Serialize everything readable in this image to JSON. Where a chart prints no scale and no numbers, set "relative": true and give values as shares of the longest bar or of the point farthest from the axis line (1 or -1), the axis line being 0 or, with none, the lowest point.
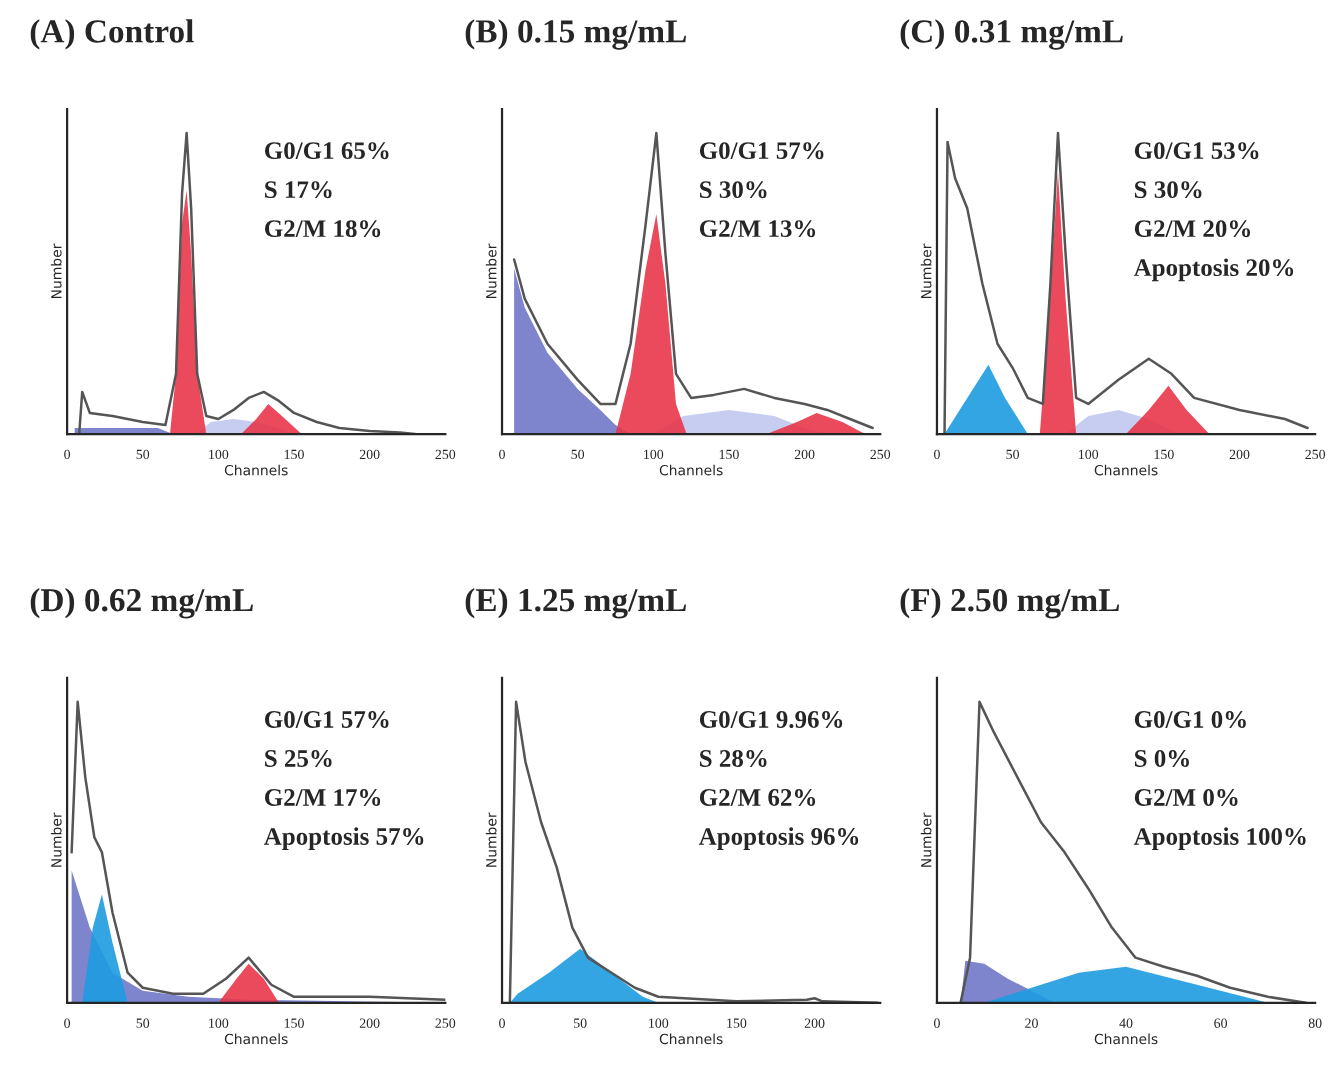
{
  "chart_data": [
    {
      "type": "area",
      "title": "(A) Control",
      "xlabel": "Channels",
      "ylabel": "Number",
      "relative": true,
      "tick_labels": "x",
      "xlim": [
        0,
        250
      ],
      "xticks": [
        0,
        50,
        100,
        150,
        200,
        250
      ],
      "grid": false,
      "legend": false,
      "annotations": [
        "G0/G1 65%",
        "S 17%",
        "G2/M 18%"
      ],
      "series": [
        {
          "color": "#7078c8",
          "x": [
            5,
            60,
            70
          ],
          "values": [
            0.02,
            0.02,
            0
          ]
        },
        {
          "type": "area",
          "color": "#c0c8ee",
          "x": [
            85,
            95,
            110,
            125,
            140,
            150
          ],
          "values": [
            0,
            0.04,
            0.05,
            0.04,
            0.02,
            0
          ]
        },
        {
          "type": "area",
          "color": "#e8364a",
          "x": [
            68,
            72,
            76,
            79,
            82,
            86,
            92
          ],
          "values": [
            0,
            0.2,
            0.7,
            0.81,
            0.6,
            0.2,
            0
          ]
        },
        {
          "type": "area",
          "color": "#e8364a",
          "x": [
            115,
            125,
            133,
            142,
            155
          ],
          "values": [
            0,
            0.05,
            0.1,
            0.06,
            0
          ]
        },
        {
          "type": "line",
          "color": "#555555",
          "x": [
            8,
            10,
            15,
            30,
            50,
            65,
            72,
            76,
            79,
            82,
            86,
            92,
            100,
            110,
            120,
            130,
            140,
            150,
            165,
            180,
            200,
            220,
            230
          ],
          "values": [
            0,
            0.14,
            0.07,
            0.06,
            0.04,
            0.03,
            0.2,
            0.8,
            1.0,
            0.75,
            0.2,
            0.06,
            0.05,
            0.08,
            0.12,
            0.14,
            0.11,
            0.07,
            0.04,
            0.02,
            0.01,
            0.005,
            0
          ]
        }
      ]
    },
    {
      "type": "area",
      "title": "(B) 0.15 mg/mL",
      "xlabel": "Channels",
      "ylabel": "Number",
      "relative": true,
      "tick_labels": "x",
      "xlim": [
        0,
        250
      ],
      "xticks": [
        0,
        50,
        100,
        150,
        200,
        250
      ],
      "grid": false,
      "legend": false,
      "annotations": [
        "G0/G1 57%",
        "S 30%",
        "G2/M 13%"
      ],
      "series": [
        {
          "color": "#7078c8",
          "x": [
            8,
            15,
            30,
            50,
            65,
            75,
            85
          ],
          "values": [
            0.55,
            0.42,
            0.27,
            0.15,
            0.08,
            0.03,
            0
          ]
        },
        {
          "type": "area",
          "color": "#c0c8ee",
          "x": [
            100,
            120,
            150,
            180,
            200,
            215
          ],
          "values": [
            0,
            0.06,
            0.08,
            0.06,
            0.02,
            0
          ]
        },
        {
          "type": "area",
          "color": "#e8364a",
          "x": [
            75,
            85,
            95,
            102,
            108,
            115,
            122
          ],
          "values": [
            0,
            0.2,
            0.55,
            0.73,
            0.5,
            0.1,
            0
          ]
        },
        {
          "type": "area",
          "color": "#e8364a",
          "x": [
            175,
            195,
            208,
            225,
            240
          ],
          "values": [
            0,
            0.04,
            0.07,
            0.04,
            0
          ]
        },
        {
          "type": "line",
          "color": "#555555",
          "x": [
            8,
            15,
            30,
            50,
            65,
            75,
            85,
            95,
            102,
            108,
            115,
            125,
            140,
            160,
            180,
            200,
            215,
            230,
            245
          ],
          "values": [
            0.58,
            0.45,
            0.3,
            0.18,
            0.1,
            0.1,
            0.3,
            0.7,
            1.0,
            0.6,
            0.2,
            0.12,
            0.13,
            0.15,
            0.12,
            0.1,
            0.08,
            0.05,
            0.02
          ]
        }
      ]
    },
    {
      "type": "area",
      "title": "(C) 0.31 mg/mL",
      "xlabel": "Channels",
      "ylabel": "Number",
      "relative": true,
      "tick_labels": "x",
      "xlim": [
        0,
        250
      ],
      "xticks": [
        0,
        50,
        100,
        150,
        200,
        250
      ],
      "grid": false,
      "legend": false,
      "annotations": [
        "G0/G1 53%",
        "S 30%",
        "G2/M 20%",
        "Apoptosis 20%"
      ],
      "series": [
        {
          "color": "#1e9be0",
          "x": [
            5,
            15,
            34,
            45,
            60
          ],
          "values": [
            0,
            0.08,
            0.23,
            0.12,
            0
          ]
        },
        {
          "type": "area",
          "color": "#c0c8ee",
          "x": [
            85,
            100,
            120,
            140,
            160
          ],
          "values": [
            0,
            0.06,
            0.08,
            0.05,
            0
          ]
        },
        {
          "type": "area",
          "color": "#e8364a",
          "x": [
            68,
            74,
            80,
            85,
            92
          ],
          "values": [
            0,
            0.4,
            0.87,
            0.45,
            0
          ]
        },
        {
          "type": "area",
          "color": "#e8364a",
          "x": [
            125,
            140,
            153,
            165,
            180
          ],
          "values": [
            0,
            0.08,
            0.16,
            0.08,
            0
          ]
        },
        {
          "type": "line",
          "color": "#555555",
          "x": [
            5,
            7,
            12,
            20,
            30,
            40,
            50,
            60,
            70,
            75,
            80,
            85,
            92,
            100,
            120,
            140,
            155,
            170,
            200,
            230,
            245
          ],
          "values": [
            0,
            0.97,
            0.85,
            0.75,
            0.5,
            0.3,
            0.22,
            0.12,
            0.1,
            0.5,
            1.0,
            0.6,
            0.12,
            0.1,
            0.18,
            0.25,
            0.2,
            0.12,
            0.08,
            0.05,
            0.02
          ]
        }
      ]
    },
    {
      "type": "area",
      "title": "(D) 0.62 mg/mL",
      "xlabel": "Channels",
      "ylabel": "Number",
      "relative": true,
      "tick_labels": "x",
      "xlim": [
        0,
        250
      ],
      "xticks": [
        0,
        50,
        100,
        150,
        200,
        250
      ],
      "grid": false,
      "legend": false,
      "annotations": [
        "G0/G1 57%",
        "S 25%",
        "G2/M 17%",
        "Apoptosis 57%"
      ],
      "series": [
        {
          "color": "#7078c8",
          "x": [
            3,
            15,
            30,
            50,
            80,
            120,
            250
          ],
          "values": [
            0.44,
            0.25,
            0.1,
            0.04,
            0.02,
            0.01,
            0
          ]
        },
        {
          "type": "area",
          "color": "#1e9be0",
          "x": [
            10,
            17,
            23,
            30,
            40
          ],
          "values": [
            0,
            0.25,
            0.36,
            0.2,
            0
          ]
        },
        {
          "type": "area",
          "color": "#e8364a",
          "x": [
            100,
            112,
            120,
            130,
            140
          ],
          "values": [
            0,
            0.08,
            0.13,
            0.08,
            0
          ]
        },
        {
          "type": "line",
          "color": "#555555",
          "x": [
            3,
            7,
            12,
            18,
            23,
            30,
            40,
            50,
            70,
            90,
            105,
            120,
            135,
            150,
            200,
            250
          ],
          "values": [
            0.5,
            1.0,
            0.75,
            0.55,
            0.5,
            0.3,
            0.1,
            0.05,
            0.03,
            0.03,
            0.08,
            0.15,
            0.06,
            0.02,
            0.02,
            0.01
          ]
        }
      ]
    },
    {
      "type": "area",
      "title": "(E) 1.25 mg/mL",
      "xlabel": "Channels",
      "ylabel": "Number",
      "relative": true,
      "tick_labels": "x",
      "xlim": [
        0,
        242
      ],
      "xticks": [
        0,
        50,
        100,
        150,
        200
      ],
      "grid": false,
      "legend": false,
      "annotations": [
        "G0/G1 9.96%",
        "S 28%",
        "G2/M 62%",
        "Apoptosis 96%"
      ],
      "series": [
        {
          "color": "#1e9be0",
          "x": [
            5,
            10,
            30,
            50,
            70,
            90,
            100
          ],
          "values": [
            0,
            0.03,
            0.1,
            0.18,
            0.1,
            0.02,
            0
          ]
        },
        {
          "type": "line",
          "color": "#555555",
          "x": [
            5,
            9,
            15,
            25,
            35,
            45,
            55,
            70,
            85,
            100,
            150,
            195,
            200,
            205,
            240
          ],
          "values": [
            0,
            1.0,
            0.8,
            0.6,
            0.45,
            0.25,
            0.15,
            0.1,
            0.05,
            0.02,
            0.005,
            0.01,
            0.015,
            0.005,
            0
          ]
        }
      ]
    },
    {
      "type": "area",
      "title": "(F) 2.50 mg/mL",
      "xlabel": "Channels",
      "ylabel": "Number",
      "relative": true,
      "tick_labels": "x",
      "xlim": [
        0,
        80
      ],
      "xticks": [
        0,
        20,
        40,
        60,
        80
      ],
      "grid": false,
      "legend": false,
      "annotations": [
        "G0/G1 0%",
        "S 0%",
        "G2/M 0%",
        "Apoptosis 100%"
      ],
      "series": [
        {
          "color": "#7078c8",
          "x": [
            5,
            6,
            10,
            15,
            20,
            25
          ],
          "values": [
            0,
            0.14,
            0.13,
            0.08,
            0.04,
            0
          ]
        },
        {
          "type": "area",
          "color": "#1e9be0",
          "x": [
            10,
            20,
            30,
            40,
            50,
            60,
            70
          ],
          "values": [
            0,
            0.05,
            0.1,
            0.12,
            0.08,
            0.04,
            0
          ]
        },
        {
          "type": "line",
          "color": "#555555",
          "x": [
            5,
            7,
            9,
            12,
            17,
            22,
            27,
            32,
            37,
            42,
            48,
            55,
            62,
            70,
            78
          ],
          "values": [
            0,
            0.15,
            1.0,
            0.9,
            0.75,
            0.6,
            0.5,
            0.38,
            0.25,
            0.15,
            0.12,
            0.09,
            0.05,
            0.02,
            0
          ]
        }
      ]
    }
  ]
}
